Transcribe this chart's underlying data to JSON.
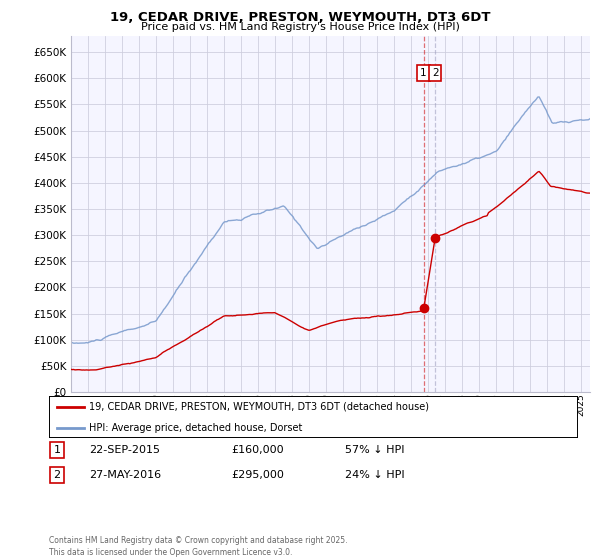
{
  "title": "19, CEDAR DRIVE, PRESTON, WEYMOUTH, DT3 6DT",
  "subtitle": "Price paid vs. HM Land Registry's House Price Index (HPI)",
  "legend_label_red": "19, CEDAR DRIVE, PRESTON, WEYMOUTH, DT3 6DT (detached house)",
  "legend_label_blue": "HPI: Average price, detached house, Dorset",
  "transaction1_label": "22-SEP-2015",
  "transaction1_price": "£160,000",
  "transaction1_pct": "57% ↓ HPI",
  "transaction2_label": "27-MAY-2016",
  "transaction2_price": "£295,000",
  "transaction2_pct": "24% ↓ HPI",
  "footnote": "Contains HM Land Registry data © Crown copyright and database right 2025.\nThis data is licensed under the Open Government Licence v3.0.",
  "ylim_max": 680000,
  "yticks": [
    0,
    50000,
    100000,
    150000,
    200000,
    250000,
    300000,
    350000,
    400000,
    450000,
    500000,
    550000,
    600000,
    650000
  ],
  "background_color": "#f5f5ff",
  "grid_color": "#ccccdd",
  "red_color": "#cc0000",
  "blue_color": "#7799cc",
  "transaction1_date_x": 2015.73,
  "transaction2_date_x": 2016.41,
  "transaction1_y": 160000,
  "transaction2_y": 295000,
  "xmin": 1995,
  "xmax": 2025.5
}
